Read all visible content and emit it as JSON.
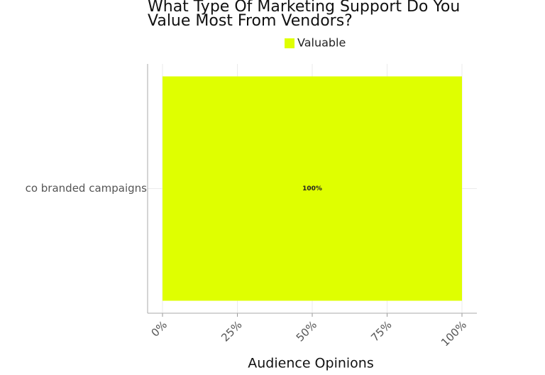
{
  "chart_data": {
    "type": "hbar",
    "title": "What Type Of Marketing Support Do You\nValue Most From Vendors?",
    "categories": [
      "co branded campaigns"
    ],
    "series": [
      {
        "name": "Valuable",
        "color": "#dfff00",
        "values": [
          100
        ],
        "value_labels": [
          "100%"
        ]
      }
    ],
    "xlabel": "Audience Opinions",
    "xlim": [
      0,
      100
    ],
    "xticks": [
      {
        "value": 0,
        "label": "0%"
      },
      {
        "value": 25,
        "label": "25%"
      },
      {
        "value": 50,
        "label": "50%"
      },
      {
        "value": 75,
        "label": "75%"
      },
      {
        "value": 100,
        "label": "100%"
      }
    ],
    "grid": true,
    "legend": "top"
  }
}
